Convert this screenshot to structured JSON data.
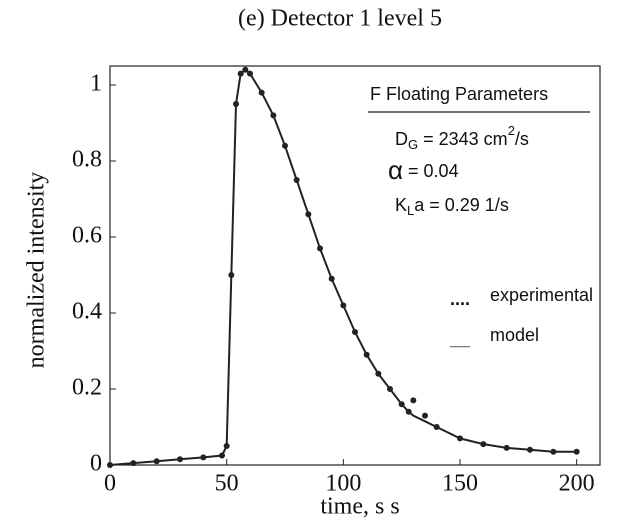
{
  "chart_data": {
    "type": "line",
    "title": "(e) Detector 1 level 5",
    "x_label": "time, s s",
    "y_label": "normalized intensity",
    "x": [
      0,
      10,
      20,
      30,
      40,
      48,
      50,
      52,
      54,
      56,
      58,
      60,
      65,
      70,
      75,
      80,
      85,
      90,
      95,
      100,
      105,
      110,
      115,
      120,
      125,
      128,
      129,
      130,
      135,
      140,
      150,
      160,
      170,
      180,
      190,
      200
    ],
    "series": [
      {
        "name": "experimental",
        "color": "#222222",
        "style": "dots",
        "values": [
          0,
          0.005,
          0.01,
          0.015,
          0.02,
          0.025,
          0.05,
          0.5,
          0.95,
          1.03,
          1.04,
          1.03,
          0.98,
          0.92,
          0.84,
          0.75,
          0.66,
          0.57,
          0.49,
          0.42,
          0.35,
          0.29,
          0.24,
          0.2,
          0.16,
          0.14,
          null,
          0.17,
          0.13,
          0.1,
          0.07,
          0.055,
          0.045,
          0.04,
          0.035,
          0.035
        ]
      },
      {
        "name": "model",
        "color": "#222222",
        "style": "line",
        "values": [
          0,
          0.005,
          0.01,
          0.015,
          0.02,
          0.025,
          0.05,
          0.5,
          0.95,
          1.03,
          1.04,
          1.03,
          0.98,
          0.92,
          0.84,
          0.75,
          0.66,
          0.57,
          0.49,
          0.42,
          0.35,
          0.29,
          0.24,
          0.2,
          0.16,
          0.14,
          0.135,
          0.13,
          0.115,
          0.1,
          0.07,
          0.055,
          0.045,
          0.04,
          0.035,
          0.035
        ]
      }
    ],
    "legend_symbols": [
      "....",
      "__"
    ],
    "xlim": [
      0,
      210
    ],
    "xticks": [
      0,
      50,
      100,
      150,
      200
    ],
    "ylim": [
      0,
      1.05
    ],
    "yticks": [
      0,
      0.2,
      0.4,
      0.6,
      0.8,
      1
    ],
    "annotations": [
      [
        {
          "text": "F Floating Parameters"
        }
      ],
      [
        {
          "text": "D"
        },
        {
          "text": "G",
          "sub": true
        },
        {
          "text": " = 2343 cm"
        },
        {
          "text": "2",
          "sup": true
        },
        {
          "text": "/s"
        }
      ],
      [
        {
          "text": "α"
        },
        {
          "text": "  = 0.04"
        }
      ],
      [
        {
          "text": "K"
        },
        {
          "text": "L",
          "sub": true
        },
        {
          "text": "a = 0.29  1/s"
        }
      ]
    ]
  }
}
